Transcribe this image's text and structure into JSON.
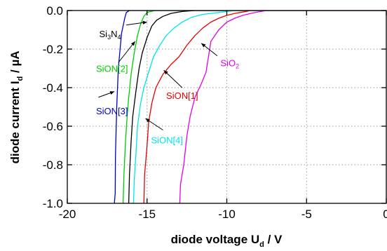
{
  "chart_data": {
    "type": "line",
    "title": "",
    "xlabel": {
      "main": "diode voltage U",
      "sub": "d",
      "unit": " / V"
    },
    "ylabel": {
      "main": "diode current I",
      "sub": "d",
      "unit": " / µA"
    },
    "xlim": [
      -20,
      0
    ],
    "ylim": [
      -1.0,
      0.0
    ],
    "xticks": [
      -20,
      -15,
      -10,
      -5,
      0
    ],
    "xtick_labels": [
      "-20",
      "-15",
      "-10",
      "-5",
      "0"
    ],
    "yticks": [
      0.0,
      -0.2,
      -0.4,
      -0.6,
      -0.8,
      -1.0
    ],
    "ytick_labels": [
      "0.0",
      "-0.2",
      "-0.4",
      "-0.6",
      "-0.8",
      "-1.0"
    ],
    "grid": "dotted",
    "series": [
      {
        "color": "#0000cc",
        "x": [
          -17.05,
          -17.0,
          -16.98,
          -16.9,
          -16.8,
          -16.6,
          -16.4,
          -16.3,
          -16.1,
          -15.5,
          -14.0,
          0.0
        ],
        "y": [
          -1.0,
          -0.95,
          -0.75,
          -0.5,
          -0.3,
          -0.12,
          -0.04,
          -0.01,
          0.0,
          0.0,
          0.0,
          0.0
        ]
      },
      {
        "color": "#00cc00",
        "x": [
          -16.5,
          -16.45,
          -16.35,
          -16.25,
          -16.15,
          -16.0,
          -15.8,
          -15.6,
          -15.4,
          -15.2,
          -15.0,
          -14.5,
          -13.5,
          0.0
        ],
        "y": [
          -1.0,
          -0.85,
          -0.68,
          -0.55,
          -0.45,
          -0.33,
          -0.22,
          -0.13,
          -0.07,
          -0.03,
          -0.01,
          0.0,
          0.0,
          0.0
        ]
      },
      {
        "color": "#000000",
        "x": [
          -16.15,
          -16.1,
          -16.0,
          -15.9,
          -15.7,
          -15.5,
          -15.3,
          -15.0,
          -14.7,
          -14.4,
          -14.0,
          -13.5,
          -12.8,
          -12.0,
          0.0
        ],
        "y": [
          -1.0,
          -0.85,
          -0.68,
          -0.55,
          -0.42,
          -0.3,
          -0.22,
          -0.14,
          -0.08,
          -0.05,
          -0.03,
          -0.015,
          -0.005,
          0.0,
          0.0
        ]
      },
      {
        "color": "#00e6e6",
        "x": [
          -15.85,
          -15.8,
          -15.7,
          -15.6,
          -15.4,
          -15.2,
          -14.9,
          -14.6,
          -14.2,
          -13.8,
          -13.3,
          -12.8,
          -12.2,
          -11.5,
          -10.5,
          -9.5,
          0.0
        ],
        "y": [
          -1.0,
          -0.88,
          -0.75,
          -0.6,
          -0.48,
          -0.4,
          -0.32,
          -0.24,
          -0.18,
          -0.13,
          -0.09,
          -0.06,
          -0.035,
          -0.02,
          -0.01,
          0.0,
          0.0
        ]
      },
      {
        "color": "#e60000",
        "x": [
          -15.2,
          -15.15,
          -15.0,
          -14.9,
          -14.7,
          -14.45,
          -14.0,
          -13.5,
          -13.0,
          -12.5,
          -12.0,
          -11.5,
          -11.0,
          -10.5,
          -10.0,
          -9.5,
          -9.0,
          -8.5,
          0.0
        ],
        "y": [
          -1.0,
          -0.85,
          -0.7,
          -0.58,
          -0.48,
          -0.4,
          -0.33,
          -0.28,
          -0.24,
          -0.18,
          -0.13,
          -0.09,
          -0.06,
          -0.04,
          -0.025,
          -0.015,
          -0.008,
          0.0,
          0.0
        ]
      },
      {
        "color": "#e600e6",
        "x": [
          -12.95,
          -12.9,
          -12.7,
          -12.5,
          -12.3,
          -12.0,
          -11.6,
          -11.3,
          -11.0,
          -10.5,
          -10.0,
          -9.5,
          -9.0,
          -8.5,
          -8.0,
          -7.5,
          0.0
        ],
        "y": [
          -1.0,
          -0.9,
          -0.8,
          -0.65,
          -0.55,
          -0.45,
          -0.38,
          -0.32,
          -0.16,
          -0.1,
          -0.06,
          -0.04,
          -0.025,
          -0.015,
          -0.007,
          0.0,
          0.0
        ]
      }
    ],
    "annotations": [
      {
        "parts": [
          [
            "Si",
            ""
          ],
          [
            "3",
            "sub"
          ],
          [
            "N",
            ""
          ],
          [
            "4",
            "sub"
          ]
        ],
        "color": "#000000",
        "tx": -18.0,
        "ty": -0.12,
        "ax": -16.3,
        "ay": -0.075,
        "bx": -15.0,
        "by": -0.06
      },
      {
        "parts": [
          [
            "SiON[2]",
            ""
          ]
        ],
        "color": "#00cc00",
        "tx": -18.2,
        "ty": -0.3,
        "ax": -16.8,
        "ay": -0.27,
        "bx": -15.75,
        "by": -0.16
      },
      {
        "parts": [
          [
            "SiON[3]",
            ""
          ]
        ],
        "color": "#0000cc",
        "tx": -18.2,
        "ty": -0.52,
        "ax": -18.05,
        "ay": -0.45,
        "bx": -17.05,
        "by": -0.42
      },
      {
        "parts": [
          [
            "SiON[4]",
            ""
          ]
        ],
        "color": "#00e6e6",
        "tx": -14.75,
        "ty": -0.67,
        "ax": -14.0,
        "ay": -0.62,
        "bx": -15.1,
        "by": -0.56
      },
      {
        "parts": [
          [
            "SiON[1]",
            ""
          ]
        ],
        "color": "#e60000",
        "tx": -13.8,
        "ty": -0.44,
        "ax": -12.8,
        "ay": -0.4,
        "bx": -13.95,
        "by": -0.31
      },
      {
        "parts": [
          [
            "SiO",
            ""
          ],
          [
            "2",
            "sub"
          ]
        ],
        "color": "#e600e6",
        "tx": -10.4,
        "ty": -0.27,
        "ax": -10.6,
        "ay": -0.235,
        "bx": -11.6,
        "by": -0.17
      }
    ]
  }
}
